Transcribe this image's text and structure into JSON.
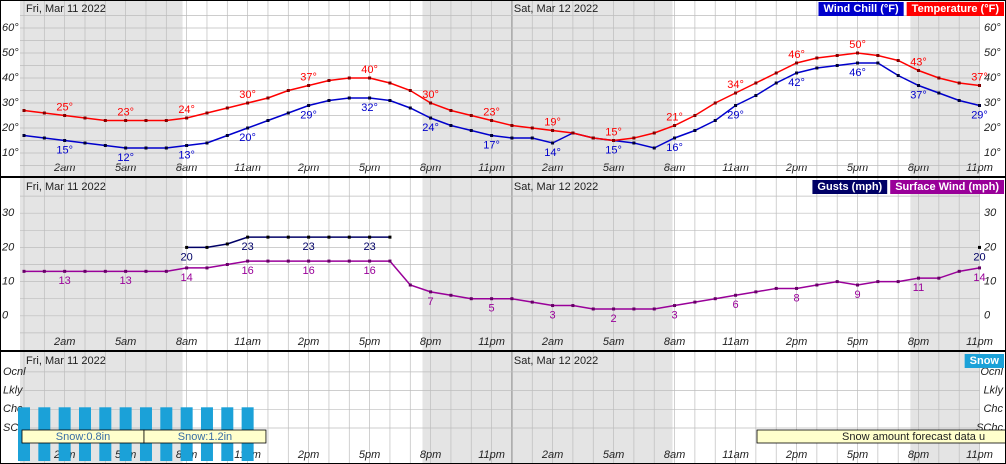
{
  "chart_data": [
    {
      "type": "line",
      "days": [
        "Fri, Mar 11 2022",
        "Sat, Mar 12 2022"
      ],
      "categories": [
        null,
        null,
        "2am",
        null,
        null,
        "5am",
        null,
        null,
        "8am",
        null,
        null,
        "11am",
        null,
        null,
        "2pm",
        null,
        null,
        "5pm",
        null,
        null,
        "8pm",
        null,
        null,
        "11pm",
        null,
        null,
        "2am",
        null,
        null,
        "5am",
        null,
        null,
        "8am",
        null,
        null,
        "11am",
        null,
        null,
        "2pm",
        null,
        null,
        "5pm",
        null,
        null,
        "8pm",
        null,
        null,
        "11pm"
      ],
      "ylim": [
        0,
        70
      ],
      "yticks": [
        {
          "value": 10,
          "label": "10°"
        },
        {
          "value": 20,
          "label": "20°"
        },
        {
          "value": 30,
          "label": "30°"
        },
        {
          "value": 40,
          "label": "40°"
        },
        {
          "value": 50,
          "label": "50°"
        },
        {
          "value": 60,
          "label": "60°"
        }
      ],
      "grid": true,
      "series": [
        {
          "name": "Wind Chill (°F)",
          "color": "#0000cc",
          "values": [
            17,
            16,
            15,
            14,
            13,
            12,
            12,
            12,
            13,
            14,
            17,
            20,
            23,
            26,
            29,
            31,
            32,
            32,
            31,
            28,
            24,
            21,
            19,
            17,
            16,
            16,
            14,
            18,
            16,
            15,
            14,
            12,
            16,
            19,
            23,
            29,
            33,
            38,
            42,
            44,
            45,
            46,
            46,
            41,
            37,
            34,
            31,
            29
          ],
          "value_labels": [
            null,
            null,
            "15°",
            null,
            null,
            "12°",
            null,
            null,
            "13°",
            null,
            null,
            "20°",
            null,
            null,
            "29°",
            null,
            null,
            "32°",
            null,
            null,
            "24°",
            null,
            null,
            "17°",
            null,
            null,
            "14°",
            null,
            null,
            "15°",
            null,
            null,
            "16°",
            null,
            null,
            "29°",
            null,
            null,
            "42°",
            null,
            null,
            "46°",
            null,
            null,
            "37°",
            null,
            null,
            "29°"
          ]
        },
        {
          "name": "Temperature (°F)",
          "color": "#ff0000",
          "values": [
            27,
            26,
            25,
            24,
            23,
            23,
            23,
            23,
            24,
            26,
            28,
            30,
            32,
            35,
            37,
            39,
            40,
            40,
            38,
            35,
            30,
            27,
            25,
            23,
            21,
            20,
            19,
            18,
            16,
            15,
            16,
            18,
            21,
            25,
            30,
            34,
            38,
            42,
            46,
            48,
            49,
            50,
            49,
            47,
            43,
            40,
            38,
            37
          ],
          "value_labels": [
            null,
            null,
            "25°",
            null,
            null,
            "23°",
            null,
            null,
            "24°",
            null,
            null,
            "30°",
            null,
            null,
            "37°",
            null,
            null,
            "40°",
            null,
            null,
            "30°",
            null,
            null,
            "23°",
            null,
            null,
            "19°",
            null,
            null,
            "15°",
            null,
            null,
            "21°",
            null,
            null,
            "34°",
            null,
            null,
            "46°",
            null,
            null,
            "50°",
            null,
            null,
            "43°",
            null,
            null,
            "37°"
          ]
        }
      ]
    },
    {
      "type": "line",
      "days": [
        "Fri, Mar 11 2022",
        "Sat, Mar 12 2022"
      ],
      "categories": [
        null,
        null,
        "2am",
        null,
        null,
        "5am",
        null,
        null,
        "8am",
        null,
        null,
        "11am",
        null,
        null,
        "2pm",
        null,
        null,
        "5pm",
        null,
        null,
        "8pm",
        null,
        null,
        "11pm",
        null,
        null,
        "2am",
        null,
        null,
        "5am",
        null,
        null,
        "8am",
        null,
        null,
        "11am",
        null,
        null,
        "2pm",
        null,
        null,
        "5pm",
        null,
        null,
        "8pm",
        null,
        null,
        "11pm"
      ],
      "ylim": [
        -10,
        40
      ],
      "yticks": [
        0,
        10,
        20,
        30
      ],
      "grid": true,
      "series": [
        {
          "name": "Gusts (mph)",
          "color": "#000066",
          "values": [
            null,
            null,
            null,
            null,
            null,
            null,
            null,
            null,
            20,
            20,
            21,
            23,
            23,
            23,
            23,
            23,
            23,
            23,
            23,
            null,
            null,
            null,
            null,
            null,
            null,
            null,
            null,
            null,
            null,
            null,
            null,
            null,
            null,
            null,
            null,
            null,
            null,
            null,
            null,
            null,
            null,
            null,
            null,
            null,
            null,
            null,
            null,
            20
          ],
          "value_labels": [
            null,
            null,
            null,
            null,
            null,
            null,
            null,
            null,
            "20",
            null,
            null,
            "23",
            null,
            null,
            "23",
            null,
            null,
            "23",
            null,
            null,
            null,
            null,
            null,
            null,
            null,
            null,
            null,
            null,
            null,
            null,
            null,
            null,
            null,
            null,
            null,
            null,
            null,
            null,
            null,
            null,
            null,
            null,
            null,
            null,
            null,
            null,
            null,
            "20"
          ]
        },
        {
          "name": "Surface Wind (mph)",
          "color": "#990099",
          "values": [
            13,
            13,
            13,
            13,
            13,
            13,
            13,
            13,
            14,
            14,
            15,
            16,
            16,
            16,
            16,
            16,
            16,
            16,
            16,
            9,
            7,
            6,
            5,
            5,
            5,
            4,
            3,
            3,
            2,
            2,
            2,
            2,
            3,
            4,
            5,
            6,
            7,
            8,
            8,
            9,
            10,
            9,
            10,
            10,
            11,
            11,
            13,
            14
          ],
          "value_labels": [
            null,
            null,
            "13",
            null,
            null,
            "13",
            null,
            null,
            "14",
            null,
            null,
            "16",
            null,
            null,
            "16",
            null,
            null,
            "16",
            null,
            null,
            "7",
            null,
            null,
            "5",
            null,
            null,
            "3",
            null,
            null,
            "2",
            null,
            null,
            "3",
            null,
            null,
            "6",
            null,
            null,
            "8",
            null,
            null,
            "9",
            null,
            null,
            "11",
            null,
            null,
            "14"
          ]
        }
      ]
    },
    {
      "type": "bar",
      "days": [
        "Fri, Mar 11 2022",
        "Sat, Mar 12 2022"
      ],
      "categories": [
        null,
        null,
        "2am",
        null,
        null,
        "5am",
        null,
        null,
        "8am",
        null,
        null,
        "11am",
        null,
        null,
        "2pm",
        null,
        null,
        "5pm",
        null,
        null,
        "8pm",
        null,
        null,
        "11pm",
        null,
        null,
        "2am",
        null,
        null,
        "5am",
        null,
        null,
        "8am",
        null,
        null,
        "11am",
        null,
        null,
        "2pm",
        null,
        null,
        "5pm",
        null,
        null,
        "8pm",
        null,
        null,
        "11pm"
      ],
      "ycategories": [
        "SChc",
        "Chc",
        "Lkly",
        "Ocnl"
      ],
      "grid": true,
      "series": [
        {
          "name": "Snow",
          "color": "#1ba1d8",
          "values": [
            "Chc",
            "Chc",
            "Chc",
            "Chc",
            "Chc",
            "Chc",
            "Chc",
            "Chc",
            "Chc",
            "Chc",
            "Chc",
            "Chc",
            null,
            null,
            null,
            null,
            null,
            null,
            null,
            null,
            null,
            null,
            null,
            null,
            null,
            null,
            null,
            null,
            null,
            null,
            null,
            null,
            null,
            null,
            null,
            null,
            null,
            null,
            null,
            null,
            null,
            null,
            null,
            null,
            null,
            null,
            null,
            null
          ]
        }
      ],
      "totals": [
        "Snow:0.8in",
        "Snow:1.2in"
      ],
      "note": "Snow amount forecast data u"
    }
  ]
}
